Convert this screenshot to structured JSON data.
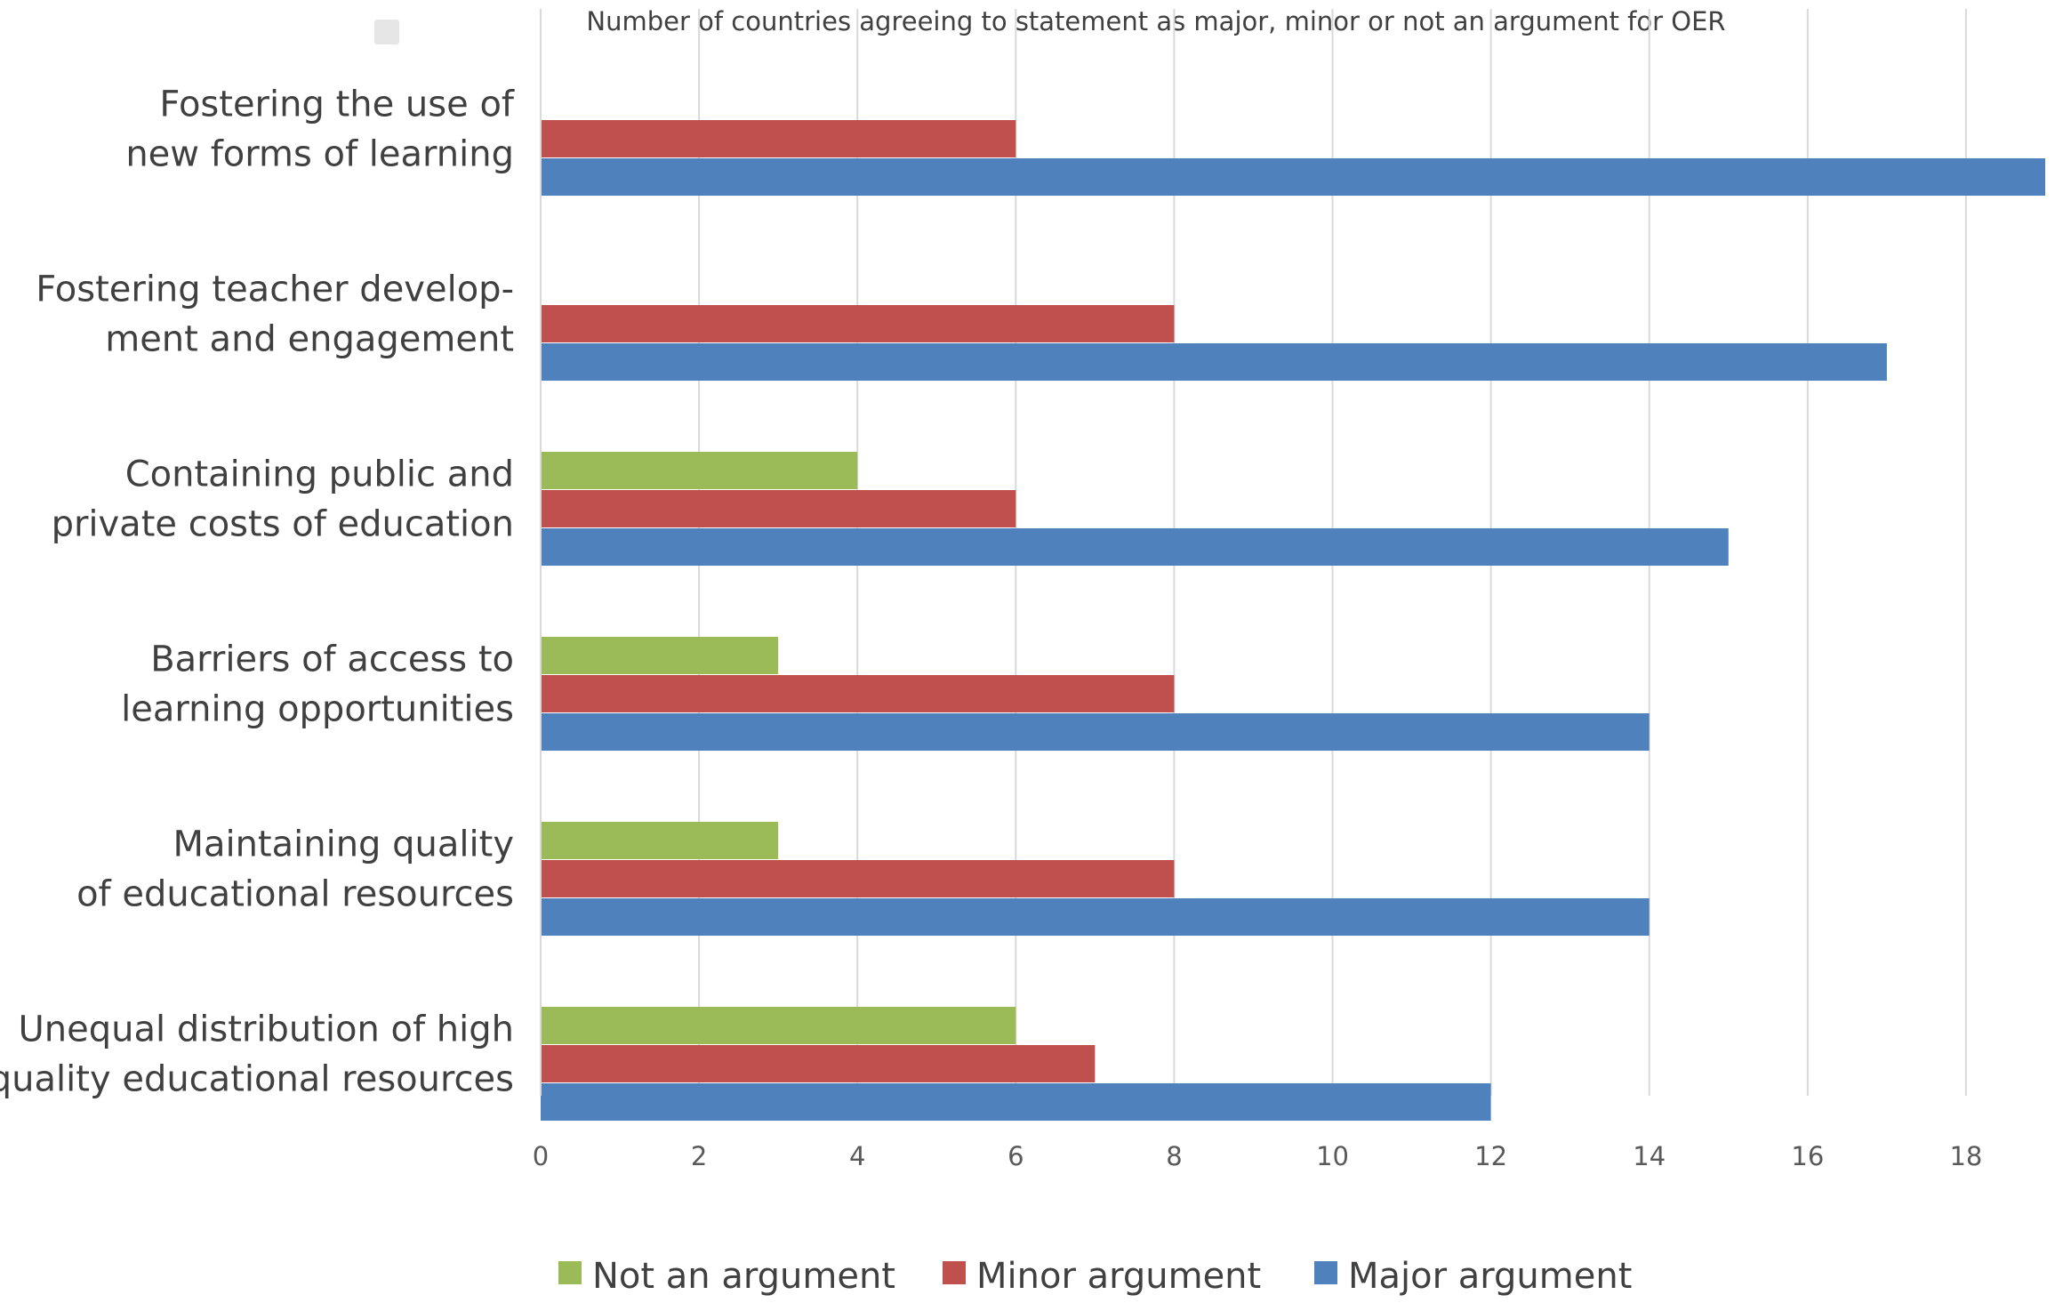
{
  "chart_data": {
    "type": "bar",
    "orientation": "horizontal",
    "subtitle": "Number of countries agreeing to statement as major, minor or not an argument for OER",
    "categories": [
      [
        "Fostering the use of",
        "new forms of learning"
      ],
      [
        "Fostering teacher develop-",
        "ment and engagement"
      ],
      [
        "Containing public and",
        "private costs of education"
      ],
      [
        "Barriers of access to",
        "learning opportunities"
      ],
      [
        "Maintaining quality",
        "of educational resources"
      ],
      [
        "Unequal distribution of high",
        "quality educational resources"
      ]
    ],
    "series": [
      {
        "name": "Not an argument",
        "color": "#9bbb59",
        "values": [
          0,
          0,
          4,
          3,
          3,
          6
        ]
      },
      {
        "name": "Minor argument",
        "color": "#c0504d",
        "values": [
          6,
          8,
          6,
          8,
          8,
          7
        ]
      },
      {
        "name": "Major argument",
        "color": "#4f81bd",
        "values": [
          19,
          17,
          15,
          14,
          14,
          12
        ]
      }
    ],
    "xlim": [
      0,
      19
    ],
    "xticks": [
      "0",
      "2",
      "4",
      "6",
      "8",
      "10",
      "12",
      "14",
      "16",
      "18"
    ],
    "grid": true,
    "legend": "bottom"
  }
}
